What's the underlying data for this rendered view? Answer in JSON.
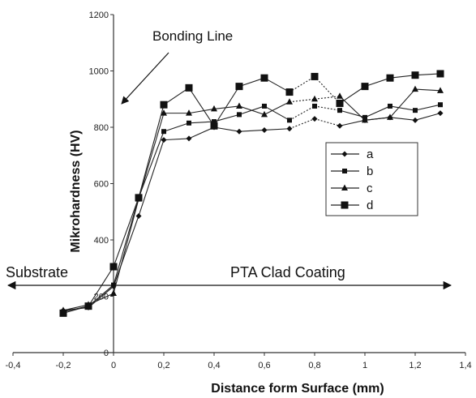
{
  "chart_data": {
    "type": "line",
    "title": "",
    "xlabel": "Distance form Surface (mm)",
    "ylabel": "Mikrohardness (HV)",
    "xlim": [
      -0.4,
      1.4
    ],
    "ylim": [
      0,
      1200
    ],
    "x_ticks": [
      "-0,4",
      "-0,2",
      "0",
      "0,2",
      "0,4",
      "0,6",
      "0,8",
      "1",
      "1,2",
      "1,4"
    ],
    "y_ticks": [
      "0",
      "200",
      "400",
      "600",
      "800",
      "1000",
      "1200"
    ],
    "x": [
      -0.2,
      -0.1,
      0,
      0.1,
      0.2,
      0.3,
      0.4,
      0.5,
      0.6,
      0.7,
      0.8,
      0.9,
      1.0,
      1.1,
      1.2,
      1.3
    ],
    "series": [
      {
        "name": "a",
        "marker": "diamond",
        "values": [
          150,
          160,
          235,
          485,
          755,
          760,
          800,
          785,
          790,
          795,
          830,
          805,
          825,
          835,
          825,
          850
        ]
      },
      {
        "name": "b",
        "marker": "square-small",
        "values": [
          145,
          165,
          240,
          550,
          785,
          815,
          820,
          845,
          875,
          825,
          875,
          860,
          835,
          875,
          860,
          880
        ]
      },
      {
        "name": "c",
        "marker": "triangle",
        "values": [
          150,
          170,
          210,
          545,
          850,
          850,
          865,
          875,
          845,
          890,
          900,
          910,
          825,
          835,
          935,
          930
        ]
      },
      {
        "name": "d",
        "marker": "square-large",
        "values": [
          140,
          165,
          305,
          550,
          880,
          940,
          805,
          945,
          975,
          925,
          980,
          885,
          945,
          975,
          985,
          990
        ]
      }
    ],
    "legend_position": "center-right",
    "annotations": {
      "bonding_line": "Bonding Line",
      "substrate": "Substrate",
      "coating": "PTA Clad Coating"
    }
  }
}
